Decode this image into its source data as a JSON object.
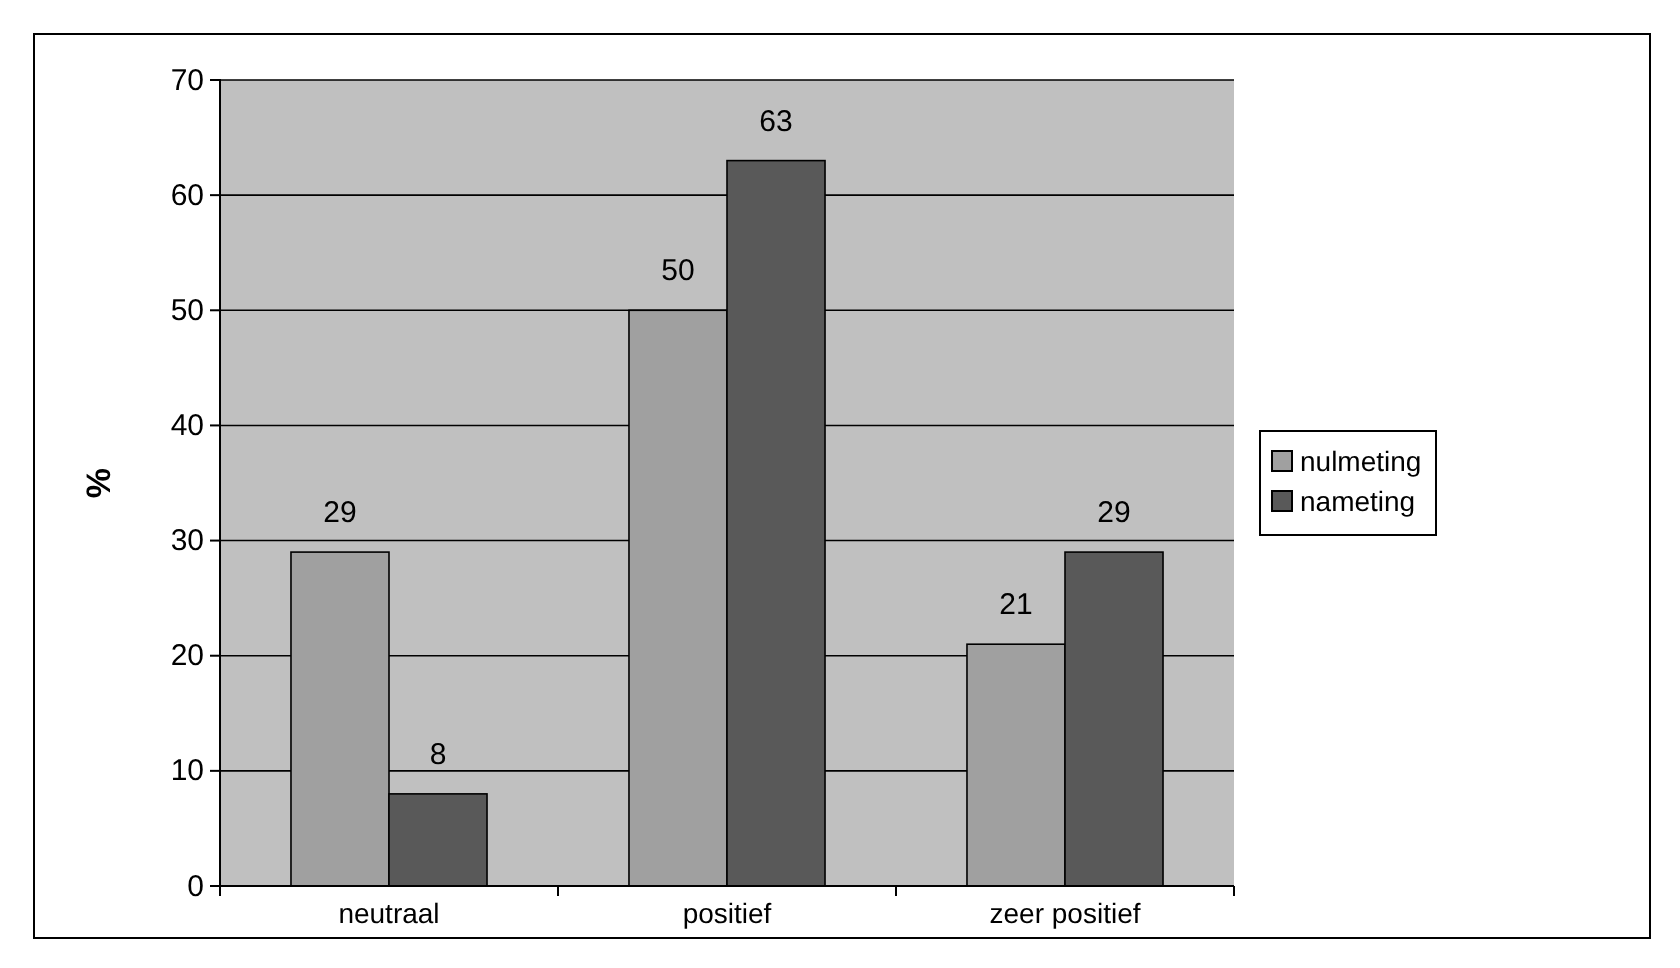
{
  "chart_data": {
    "type": "bar",
    "ylabel": "%",
    "categories": [
      "neutraal",
      "positief",
      "zeer positief"
    ],
    "series": [
      {
        "name": "nulmeting",
        "color": "#a0a0a0",
        "values": [
          29,
          50,
          21
        ]
      },
      {
        "name": "nameting",
        "color": "#595959",
        "values": [
          8,
          63,
          29
        ]
      }
    ],
    "ylim": [
      0,
      70
    ],
    "yticks": [
      0,
      10,
      20,
      30,
      40,
      50,
      60,
      70
    ],
    "grid": "y",
    "legend": "right",
    "data_labels": true
  }
}
